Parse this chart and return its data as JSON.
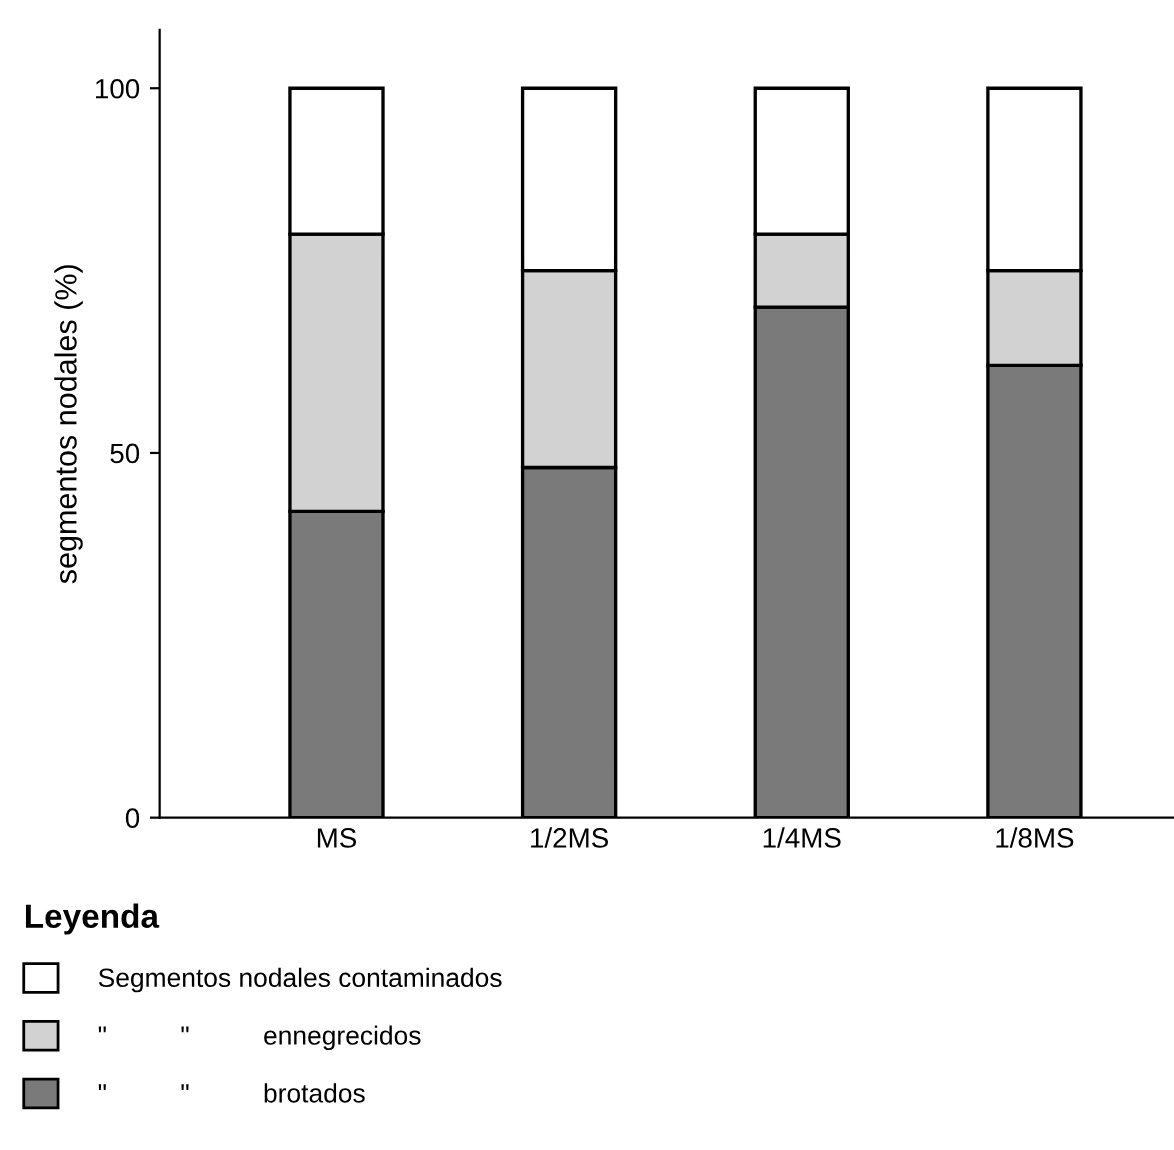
{
  "chart_data": {
    "type": "bar",
    "stacked": true,
    "ylabel": "segmentos nodales (%)",
    "legend_title": "Leyenda",
    "categories": [
      "MS",
      "1/2MS",
      "1/4MS",
      "1/8MS"
    ],
    "series": [
      {
        "name": "\"          \"          brotados",
        "color": "#7a7a7a",
        "values": [
          42,
          48,
          70,
          62
        ]
      },
      {
        "name": "\"          \"          ennegrecidos",
        "color": "#d2d2d2",
        "values": [
          38,
          27,
          10,
          13
        ]
      },
      {
        "name": "Segmentos nodales contaminados",
        "color": "#ffffff",
        "values": [
          20,
          25,
          20,
          25
        ]
      }
    ],
    "ylim": [
      0,
      108
    ],
    "yticks": [
      0,
      50,
      100
    ],
    "grid": false,
    "legend": "bottom"
  }
}
